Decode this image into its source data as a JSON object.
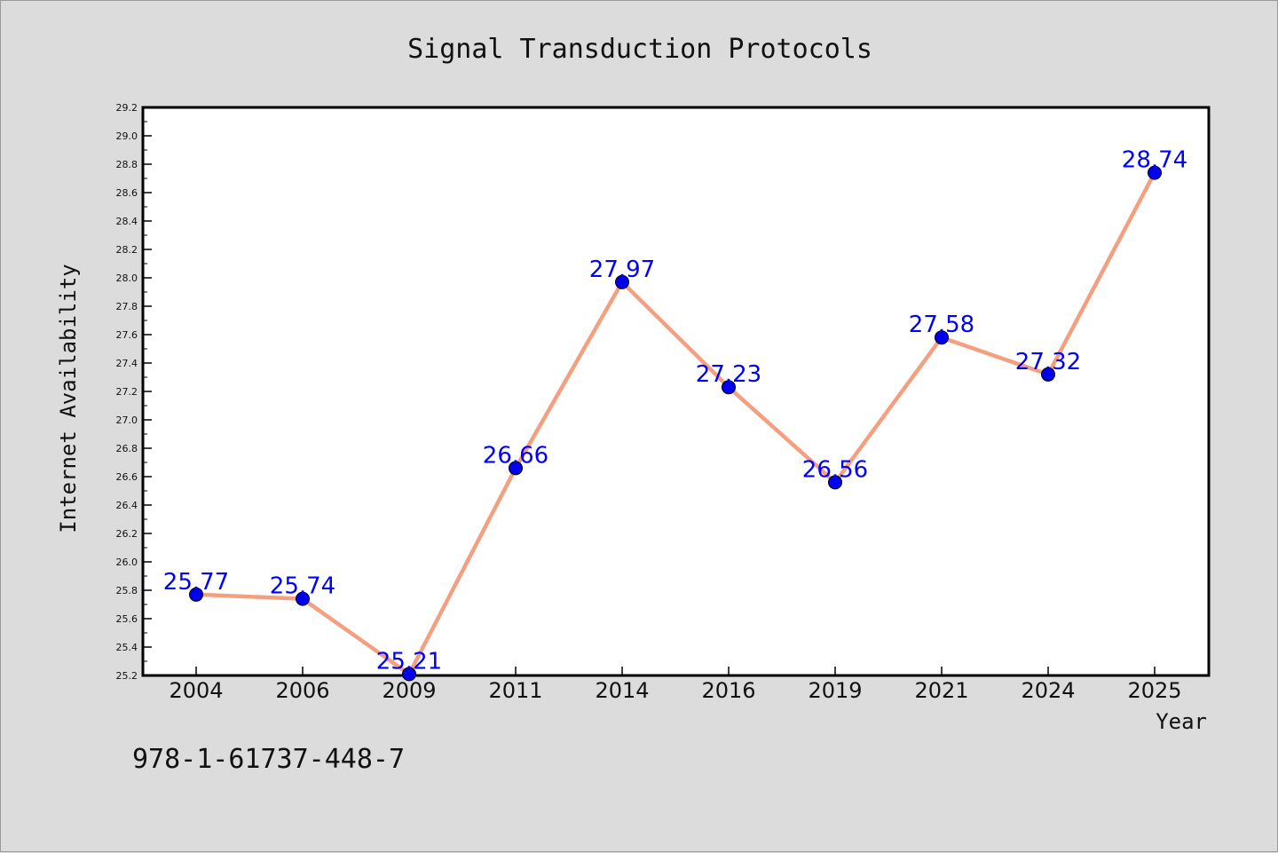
{
  "chart_data": {
    "type": "line",
    "title": "Signal Transduction Protocols",
    "xlabel": "Year",
    "ylabel": "Internet Availability",
    "categories": [
      "2004",
      "2006",
      "2009",
      "2011",
      "2014",
      "2016",
      "2019",
      "2021",
      "2024",
      "2025"
    ],
    "series": [
      {
        "values": [
          25.77,
          25.74,
          25.21,
          26.66,
          27.97,
          27.23,
          26.56,
          27.58,
          27.32,
          28.74
        ],
        "value_labels": [
          "25.77",
          "25.74",
          "25.21",
          "26.66",
          "27.97",
          "27.23",
          "26.56",
          "27.58",
          "27.32",
          "28.74"
        ],
        "line_color": "#f4a080",
        "marker_color": "#0000ee"
      }
    ],
    "ylim": [
      25.2,
      29.2
    ],
    "yticks": [
      "25.2",
      "25.4",
      "25.6",
      "25.8",
      "26.0",
      "26.2",
      "26.4",
      "26.6",
      "26.8",
      "27.0",
      "27.2",
      "27.4",
      "27.6",
      "27.8",
      "28.0",
      "28.2",
      "28.4",
      "28.6",
      "28.8",
      "29.0",
      "29.2"
    ],
    "grid": false,
    "label_color": "#0000ff"
  },
  "footer": {
    "isbn": "978-1-61737-448-7"
  }
}
